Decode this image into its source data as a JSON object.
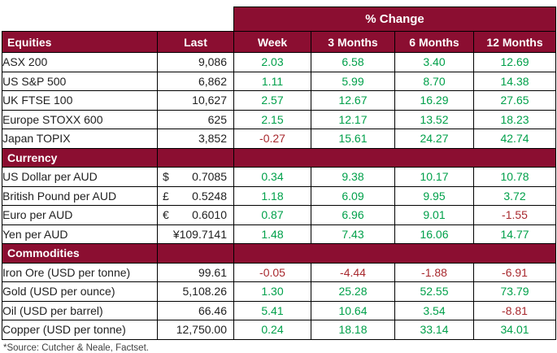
{
  "table": {
    "pct_change_label": "% Change",
    "columns": {
      "last": "Last",
      "week": "Week",
      "m3": "3 Months",
      "m6": "6 Months",
      "m12": "12 Months"
    },
    "sections": [
      {
        "label": "Equities",
        "rows": [
          {
            "name": "ASX 200",
            "symbol": "",
            "last": "9,086",
            "week": "2.03",
            "m3": "6.58",
            "m6": "3.40",
            "m12": "12.69"
          },
          {
            "name": "US S&P 500",
            "symbol": "",
            "last": "6,862",
            "week": "1.11",
            "m3": "5.99",
            "m6": "8.70",
            "m12": "14.38"
          },
          {
            "name": "UK FTSE 100",
            "symbol": "",
            "last": "10,627",
            "week": "2.57",
            "m3": "12.67",
            "m6": "16.29",
            "m12": "27.65"
          },
          {
            "name": "Europe STOXX 600",
            "symbol": "",
            "last": "625",
            "week": "2.15",
            "m3": "12.17",
            "m6": "13.52",
            "m12": "18.23"
          },
          {
            "name": "Japan TOPIX",
            "symbol": "",
            "last": "3,852",
            "week": "-0.27",
            "m3": "15.61",
            "m6": "24.27",
            "m12": "42.74"
          }
        ]
      },
      {
        "label": "Currency",
        "rows": [
          {
            "name": "US Dollar per AUD",
            "symbol": "$",
            "last": "0.7085",
            "week": "0.34",
            "m3": "9.38",
            "m6": "10.17",
            "m12": "10.78"
          },
          {
            "name": "British Pound per AUD",
            "symbol": "£",
            "last": "0.5248",
            "week": "1.18",
            "m3": "6.09",
            "m6": "9.95",
            "m12": "3.72"
          },
          {
            "name": "Euro per AUD",
            "symbol": "€",
            "last": "0.6010",
            "week": "0.87",
            "m3": "6.96",
            "m6": "9.01",
            "m12": "-1.55"
          },
          {
            "name": "Yen per AUD",
            "symbol": "",
            "last": "¥109.7141",
            "week": "1.48",
            "m3": "7.43",
            "m6": "16.06",
            "m12": "14.77"
          }
        ]
      },
      {
        "label": "Commodities",
        "rows": [
          {
            "name": "Iron Ore (USD per tonne)",
            "symbol": "",
            "last": "99.61",
            "week": "-0.05",
            "m3": "-4.44",
            "m6": "-1.88",
            "m12": "-6.91"
          },
          {
            "name": "Gold (USD per ounce)",
            "symbol": "",
            "last": "5,108.26",
            "week": "1.30",
            "m3": "25.28",
            "m6": "52.55",
            "m12": "73.79"
          },
          {
            "name": "Oil (USD per barrel)",
            "symbol": "",
            "last": "66.46",
            "week": "5.41",
            "m3": "10.64",
            "m6": "3.54",
            "m12": "-8.81"
          },
          {
            "name": "Copper (USD per tonne)",
            "symbol": "",
            "last": "12,750.00",
            "week": "0.24",
            "m3": "18.18",
            "m6": "33.14",
            "m12": "34.01"
          }
        ]
      }
    ]
  },
  "footer": {
    "source": "*Source: Cutcher & Neale, Factset."
  },
  "colors": {
    "maroon": "#8B0E31",
    "positive": "#00A04A",
    "negative": "#A8292E",
    "ink": "#1F1F1F"
  }
}
